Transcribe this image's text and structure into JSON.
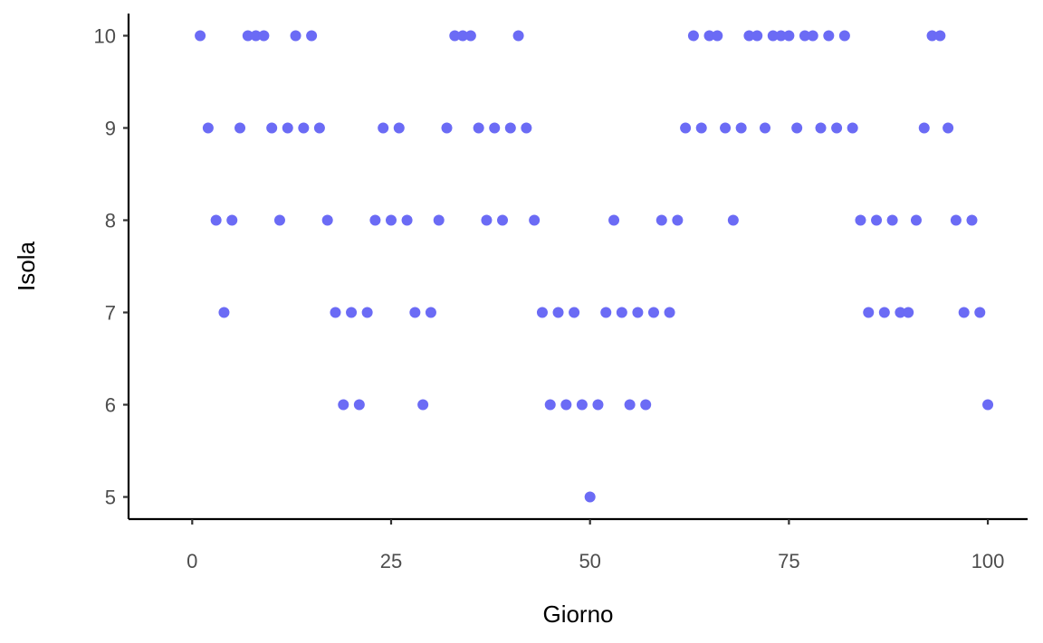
{
  "chart_data": {
    "type": "scatter",
    "title": "",
    "xlabel": "Giorno",
    "ylabel": "Isola",
    "xlim": [
      -8,
      105
    ],
    "ylim": [
      4.76,
      10.24
    ],
    "xticks": [
      0,
      25,
      50,
      75,
      100
    ],
    "xtick_labels": [
      "0",
      "25",
      "50",
      "75",
      "100"
    ],
    "yticks": [
      5,
      6,
      7,
      8,
      9,
      10
    ],
    "ytick_labels": [
      "5",
      "6",
      "7",
      "8",
      "9",
      "10"
    ],
    "grid": false,
    "point_color": "#6b6bf5",
    "x": [
      1,
      2,
      3,
      4,
      5,
      6,
      7,
      8,
      9,
      10,
      11,
      12,
      13,
      14,
      15,
      16,
      17,
      18,
      19,
      20,
      21,
      22,
      23,
      24,
      25,
      26,
      27,
      28,
      29,
      30,
      31,
      32,
      33,
      34,
      35,
      36,
      37,
      38,
      39,
      40,
      41,
      42,
      43,
      44,
      45,
      46,
      47,
      48,
      49,
      50,
      51,
      52,
      53,
      54,
      55,
      56,
      57,
      58,
      59,
      60,
      61,
      62,
      63,
      64,
      65,
      66,
      67,
      68,
      69,
      70,
      71,
      72,
      73,
      74,
      75,
      76,
      77,
      78,
      79,
      80,
      81,
      82,
      83,
      84,
      85,
      86,
      87,
      88,
      89,
      90,
      91,
      92,
      93,
      94,
      95,
      96,
      97,
      98,
      99,
      100
    ],
    "y": [
      10,
      9,
      8,
      7,
      8,
      9,
      10,
      10,
      10,
      9,
      8,
      9,
      10,
      9,
      10,
      9,
      8,
      7,
      6,
      7,
      6,
      7,
      8,
      9,
      8,
      9,
      8,
      7,
      6,
      7,
      8,
      9,
      10,
      10,
      10,
      9,
      8,
      9,
      8,
      9,
      10,
      9,
      8,
      7,
      6,
      7,
      6,
      7,
      6,
      5,
      6,
      7,
      8,
      7,
      6,
      7,
      6,
      7,
      8,
      7,
      8,
      9,
      10,
      9,
      10,
      10,
      9,
      8,
      9,
      10,
      10,
      9,
      10,
      10,
      10,
      9,
      10,
      10,
      9,
      10,
      9,
      10,
      9,
      8,
      7,
      8,
      7,
      8,
      7,
      7,
      8,
      9,
      10,
      10,
      9,
      8,
      7,
      8,
      7,
      6
    ]
  }
}
